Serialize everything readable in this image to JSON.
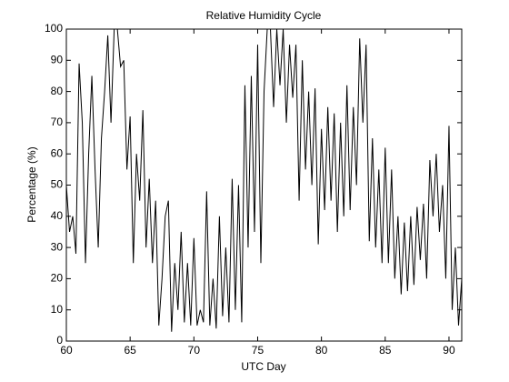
{
  "chart_data": {
    "type": "line",
    "title": "Relative Humidity Cycle",
    "x_label": "UTC Day",
    "y_label": "Percentage (%)",
    "x": [
      60,
      60.25,
      60.5,
      60.75,
      61,
      61.25,
      61.5,
      61.75,
      62,
      62.25,
      62.5,
      62.75,
      63,
      63.25,
      63.5,
      63.75,
      64,
      64.25,
      64.5,
      64.75,
      65,
      65.25,
      65.5,
      65.75,
      66,
      66.25,
      66.5,
      66.75,
      67,
      67.25,
      67.5,
      67.75,
      68,
      68.25,
      68.5,
      68.75,
      69,
      69.25,
      69.5,
      69.75,
      70,
      70.25,
      70.5,
      70.75,
      71,
      71.25,
      71.5,
      71.75,
      72,
      72.25,
      72.5,
      72.75,
      73,
      73.25,
      73.5,
      73.75,
      74,
      74.25,
      74.5,
      74.75,
      75,
      75.25,
      75.5,
      75.75,
      76,
      76.25,
      76.5,
      76.75,
      77,
      77.25,
      77.5,
      77.75,
      78,
      78.25,
      78.5,
      78.75,
      79,
      79.25,
      79.5,
      79.75,
      80,
      80.25,
      80.5,
      80.75,
      81,
      81.25,
      81.5,
      81.75,
      82,
      82.25,
      82.5,
      82.75,
      83,
      83.25,
      83.5,
      83.75,
      84,
      84.25,
      84.5,
      84.75,
      85,
      85.25,
      85.5,
      85.75,
      86,
      86.25,
      86.5,
      86.75,
      87,
      87.25,
      87.5,
      87.75,
      88,
      88.25,
      88.5,
      88.75,
      89,
      89.25,
      89.5,
      89.75,
      90,
      90.25,
      90.5,
      90.75,
      91
    ],
    "values": [
      50,
      35,
      40,
      28,
      89,
      70,
      25,
      60,
      85,
      55,
      30,
      65,
      80,
      98,
      70,
      100,
      100,
      88,
      90,
      55,
      72,
      25,
      60,
      45,
      74,
      30,
      52,
      25,
      45,
      5,
      20,
      40,
      45,
      3,
      25,
      10,
      35,
      6,
      25,
      5,
      33,
      5,
      10,
      6,
      48,
      5,
      20,
      4,
      40,
      8,
      30,
      6,
      52,
      10,
      50,
      6,
      82,
      30,
      85,
      35,
      95,
      25,
      80,
      100,
      100,
      75,
      100,
      82,
      100,
      70,
      95,
      78,
      95,
      45,
      90,
      55,
      80,
      50,
      81,
      31,
      68,
      42,
      75,
      45,
      73,
      35,
      70,
      40,
      82,
      42,
      75,
      50,
      97,
      70,
      95,
      32,
      65,
      30,
      55,
      25,
      62,
      25,
      55,
      20,
      40,
      15,
      38,
      16,
      40,
      18,
      43,
      26,
      44,
      20,
      58,
      40,
      60,
      35,
      50,
      20,
      69,
      10,
      30,
      5,
      20
    ],
    "color": "#000000",
    "xlim": [
      60,
      91
    ],
    "xticks": [
      60,
      65,
      70,
      75,
      80,
      85,
      90
    ],
    "ylim": [
      0,
      100
    ],
    "yticks": [
      0,
      10,
      20,
      30,
      40,
      50,
      60,
      70,
      80,
      90,
      100
    ]
  }
}
